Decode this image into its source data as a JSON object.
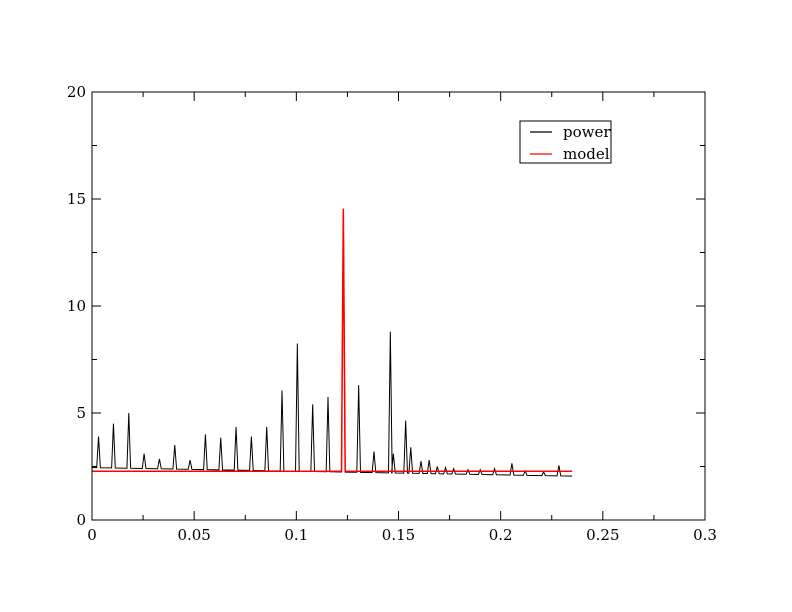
{
  "chart_data": {
    "type": "line",
    "title": "",
    "xlabel": "",
    "ylabel": "",
    "xlim": [
      0,
      0.3
    ],
    "ylim": [
      0,
      20
    ],
    "x_ticks": [
      0,
      0.05,
      0.1,
      0.15,
      0.2,
      0.25,
      0.3
    ],
    "x_tick_labels": [
      "0",
      "0.05",
      "0.1",
      "0.15",
      "0.2",
      "0.25",
      "0.3"
    ],
    "y_ticks": [
      0,
      5,
      10,
      15,
      20
    ],
    "y_tick_labels": [
      "0",
      "5",
      "10",
      "15",
      "20"
    ],
    "grid": false,
    "legend_position": "top-right",
    "series": [
      {
        "name": "power",
        "color": "#000000",
        "baseline": [
          [
            0,
            2.45
          ],
          [
            0.235,
            2.05
          ]
        ],
        "peaks": [
          [
            0.0032,
            3.9
          ],
          [
            0.0105,
            4.5
          ],
          [
            0.018,
            5.0
          ],
          [
            0.0255,
            3.1
          ],
          [
            0.033,
            2.85
          ],
          [
            0.0405,
            3.5
          ],
          [
            0.048,
            2.8
          ],
          [
            0.0555,
            4.0
          ],
          [
            0.063,
            3.85
          ],
          [
            0.0705,
            4.35
          ],
          [
            0.078,
            3.9
          ],
          [
            0.0855,
            4.35
          ],
          [
            0.093,
            6.05
          ],
          [
            0.1005,
            8.25
          ],
          [
            0.108,
            5.4
          ],
          [
            0.1155,
            5.75
          ],
          [
            0.123,
            14.5
          ],
          [
            0.1305,
            6.3
          ],
          [
            0.138,
            3.2
          ],
          [
            0.146,
            8.8
          ],
          [
            0.1475,
            3.1
          ],
          [
            0.1535,
            4.65
          ],
          [
            0.156,
            3.4
          ],
          [
            0.161,
            2.75
          ],
          [
            0.165,
            2.8
          ],
          [
            0.169,
            2.5
          ],
          [
            0.173,
            2.45
          ],
          [
            0.177,
            2.4
          ],
          [
            0.184,
            2.35
          ],
          [
            0.19,
            2.35
          ],
          [
            0.197,
            2.4
          ],
          [
            0.2055,
            2.65
          ],
          [
            0.212,
            2.3
          ],
          [
            0.221,
            2.25
          ],
          [
            0.2285,
            2.55
          ]
        ]
      },
      {
        "name": "model",
        "color": "#ff0000",
        "baseline": [
          [
            0,
            2.28
          ],
          [
            0.235,
            2.28
          ]
        ],
        "peaks": [
          [
            0.123,
            14.55
          ]
        ]
      }
    ]
  }
}
